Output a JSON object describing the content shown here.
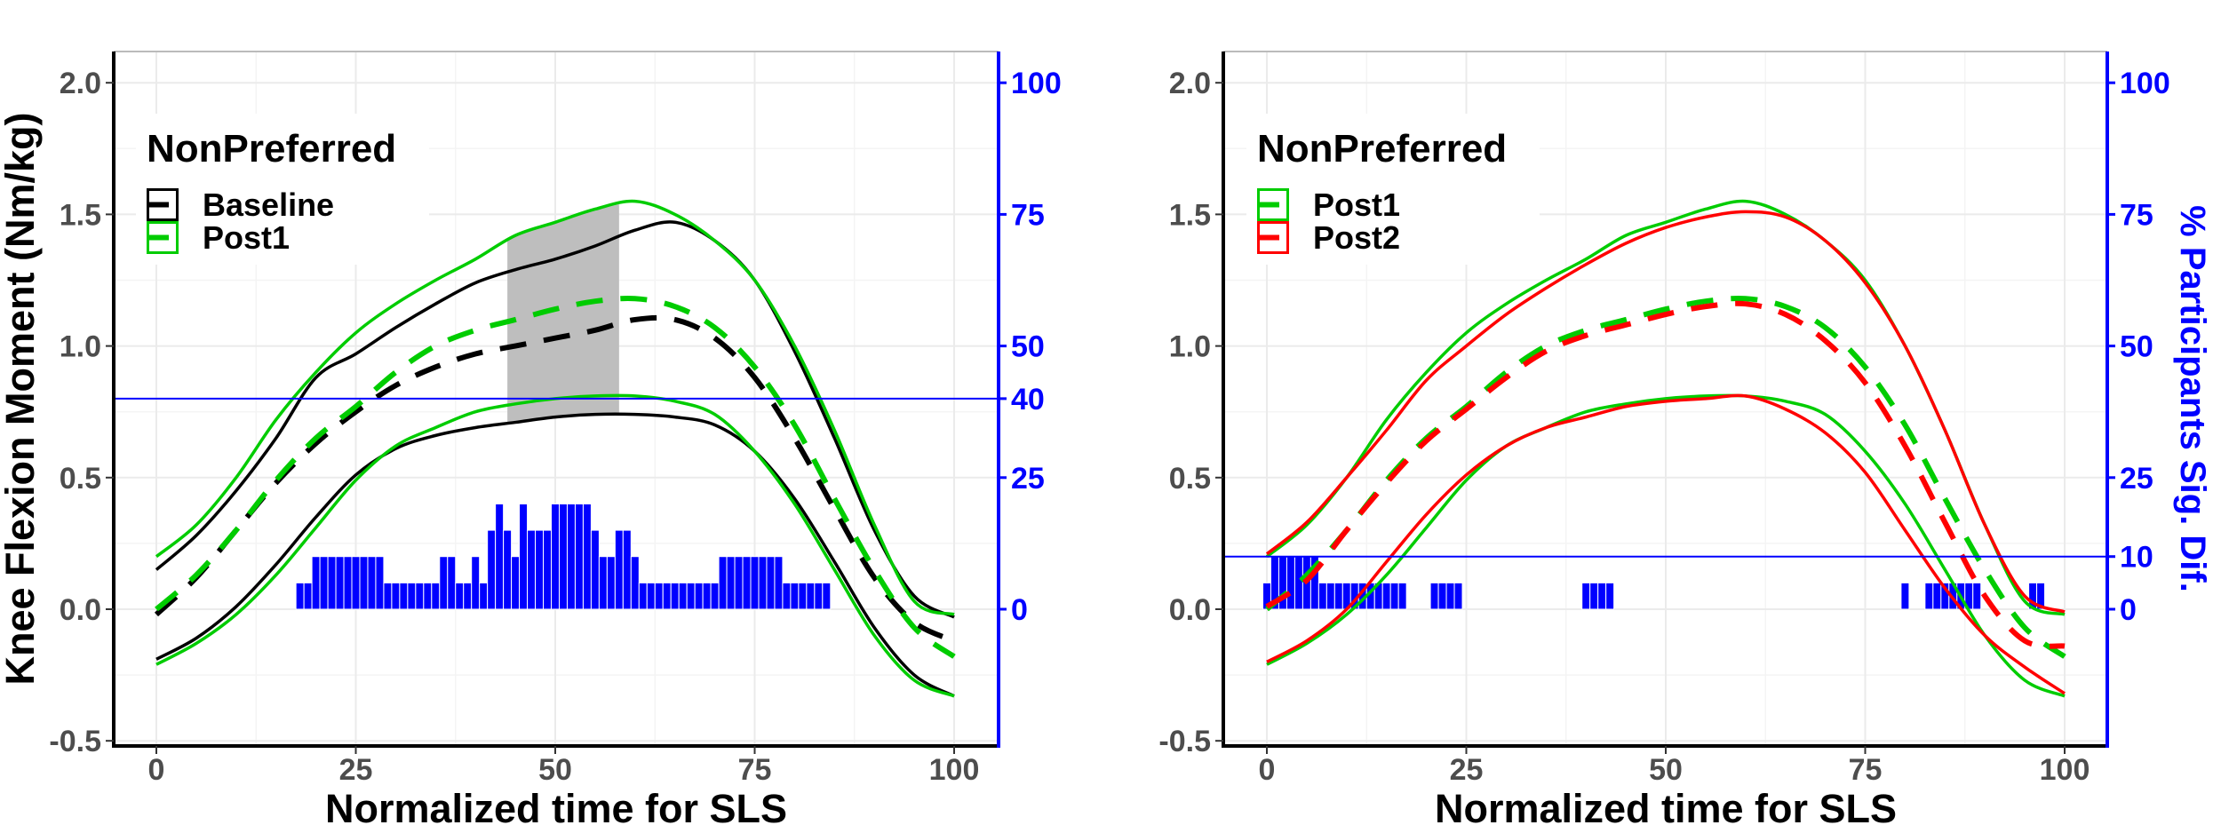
{
  "chart_data": [
    {
      "type": "line",
      "title": "",
      "xlabel": "Normalized time for SLS",
      "ylabel": "Knee Flexion Moment (Nm/kg)",
      "ylabel_right": "",
      "xlim": [
        0,
        100
      ],
      "ylim": [
        -0.5,
        2.0
      ],
      "ylim_right": [
        0,
        100
      ],
      "x_ticks": [
        "0",
        "25",
        "50",
        "75",
        "100"
      ],
      "y_ticks": [
        "-0.5",
        "0.0",
        "0.5",
        "1.0",
        "1.5",
        "2.0"
      ],
      "y_right_ticks": [
        "0",
        "25",
        "40",
        "50",
        "75",
        "100"
      ],
      "grid": true,
      "legend": {
        "title": "NonPreferred",
        "placement": "top-left",
        "entries": [
          "Baseline",
          "Post1"
        ]
      },
      "threshold_line_right_axis": 40,
      "shaded_region_x": [
        44,
        58
      ],
      "x": [
        0,
        5,
        10,
        15,
        20,
        25,
        30,
        35,
        40,
        45,
        50,
        55,
        60,
        65,
        70,
        75,
        80,
        85,
        90,
        95,
        100
      ],
      "series": [
        {
          "name": "Baseline",
          "color": "#000000",
          "mean": [
            -0.02,
            0.12,
            0.3,
            0.48,
            0.63,
            0.75,
            0.85,
            0.92,
            0.97,
            1.0,
            1.03,
            1.06,
            1.1,
            1.1,
            1.03,
            0.88,
            0.65,
            0.38,
            0.12,
            -0.05,
            -0.12
          ],
          "upper": [
            0.15,
            0.28,
            0.45,
            0.65,
            0.88,
            0.97,
            1.07,
            1.16,
            1.24,
            1.29,
            1.33,
            1.38,
            1.44,
            1.47,
            1.4,
            1.25,
            0.98,
            0.65,
            0.3,
            0.05,
            -0.03
          ],
          "lower": [
            -0.19,
            -0.11,
            0.01,
            0.17,
            0.35,
            0.51,
            0.61,
            0.66,
            0.69,
            0.71,
            0.73,
            0.74,
            0.74,
            0.73,
            0.7,
            0.6,
            0.42,
            0.18,
            -0.07,
            -0.25,
            -0.33
          ]
        },
        {
          "name": "Post1",
          "color": "#00cc00",
          "mean": [
            0.0,
            0.13,
            0.3,
            0.49,
            0.65,
            0.77,
            0.9,
            1.0,
            1.06,
            1.1,
            1.14,
            1.17,
            1.18,
            1.15,
            1.07,
            0.92,
            0.7,
            0.42,
            0.15,
            -0.07,
            -0.18
          ],
          "upper": [
            0.2,
            0.32,
            0.5,
            0.72,
            0.9,
            1.05,
            1.16,
            1.25,
            1.33,
            1.42,
            1.47,
            1.52,
            1.55,
            1.5,
            1.4,
            1.25,
            1.0,
            0.68,
            0.32,
            0.03,
            -0.02
          ],
          "lower": [
            -0.21,
            -0.13,
            -0.02,
            0.13,
            0.31,
            0.49,
            0.62,
            0.69,
            0.75,
            0.78,
            0.8,
            0.81,
            0.81,
            0.79,
            0.74,
            0.6,
            0.4,
            0.15,
            -0.1,
            -0.27,
            -0.33
          ]
        }
      ],
      "bars": {
        "color": "#0000ff",
        "x": [
          18,
          19,
          20,
          21,
          22,
          23,
          24,
          25,
          26,
          27,
          28,
          29,
          30,
          31,
          32,
          33,
          34,
          35,
          36,
          37,
          38,
          39,
          40,
          41,
          42,
          43,
          44,
          45,
          46,
          47,
          48,
          49,
          50,
          51,
          52,
          53,
          54,
          55,
          56,
          57,
          58,
          59,
          60,
          61,
          62,
          63,
          64,
          65,
          66,
          67,
          68,
          69,
          70,
          71,
          72,
          73,
          74,
          75,
          76,
          77,
          78,
          79,
          80,
          81,
          82,
          83,
          84
        ],
        "values": [
          5,
          5,
          10,
          10,
          10,
          10,
          10,
          10,
          10,
          10,
          10,
          5,
          5,
          5,
          5,
          5,
          5,
          5,
          10,
          10,
          5,
          5,
          10,
          5,
          15,
          20,
          15,
          10,
          20,
          15,
          15,
          15,
          20,
          20,
          20,
          20,
          20,
          15,
          10,
          10,
          15,
          15,
          10,
          5,
          5,
          5,
          5,
          5,
          5,
          5,
          5,
          5,
          5,
          10,
          10,
          10,
          10,
          10,
          10,
          10,
          10,
          5,
          5,
          5,
          5,
          5,
          5
        ]
      }
    },
    {
      "type": "line",
      "title": "",
      "xlabel": "Normalized time for SLS",
      "ylabel": "",
      "ylabel_right": "% Participants Sig. Dif.",
      "xlim": [
        0,
        100
      ],
      "ylim": [
        -0.5,
        2.0
      ],
      "ylim_right": [
        0,
        100
      ],
      "x_ticks": [
        "0",
        "25",
        "50",
        "75",
        "100"
      ],
      "y_ticks": [
        "-0.5",
        "0.0",
        "0.5",
        "1.0",
        "1.5",
        "2.0"
      ],
      "y_right_ticks": [
        "0",
        "10",
        "25",
        "50",
        "75",
        "100"
      ],
      "grid": true,
      "legend": {
        "title": "NonPreferred",
        "placement": "top-left",
        "entries": [
          "Post1",
          "Post2"
        ]
      },
      "threshold_line_right_axis": 10,
      "x": [
        0,
        5,
        10,
        15,
        20,
        25,
        30,
        35,
        40,
        45,
        50,
        55,
        60,
        65,
        70,
        75,
        80,
        85,
        90,
        95,
        100
      ],
      "series": [
        {
          "name": "Post1",
          "color": "#00cc00",
          "mean": [
            0.0,
            0.13,
            0.3,
            0.49,
            0.65,
            0.77,
            0.9,
            1.0,
            1.06,
            1.1,
            1.14,
            1.17,
            1.18,
            1.15,
            1.07,
            0.92,
            0.7,
            0.42,
            0.15,
            -0.07,
            -0.18
          ],
          "upper": [
            0.2,
            0.32,
            0.5,
            0.72,
            0.9,
            1.05,
            1.16,
            1.25,
            1.33,
            1.42,
            1.47,
            1.52,
            1.55,
            1.5,
            1.4,
            1.25,
            1.0,
            0.68,
            0.32,
            0.03,
            -0.02
          ],
          "lower": [
            -0.21,
            -0.13,
            -0.02,
            0.13,
            0.31,
            0.49,
            0.62,
            0.69,
            0.75,
            0.78,
            0.8,
            0.81,
            0.81,
            0.79,
            0.74,
            0.6,
            0.4,
            0.15,
            -0.1,
            -0.27,
            -0.33
          ]
        },
        {
          "name": "Post2",
          "color": "#ff0000",
          "mean": [
            0.01,
            0.11,
            0.3,
            0.48,
            0.64,
            0.76,
            0.88,
            0.98,
            1.04,
            1.08,
            1.12,
            1.15,
            1.16,
            1.12,
            1.02,
            0.86,
            0.62,
            0.33,
            0.05,
            -0.12,
            -0.14
          ],
          "upper": [
            0.21,
            0.33,
            0.5,
            0.68,
            0.87,
            1.0,
            1.12,
            1.22,
            1.31,
            1.39,
            1.45,
            1.49,
            1.51,
            1.49,
            1.4,
            1.24,
            1.0,
            0.68,
            0.32,
            0.05,
            -0.01
          ],
          "lower": [
            -0.2,
            -0.12,
            0.0,
            0.18,
            0.36,
            0.51,
            0.62,
            0.69,
            0.73,
            0.77,
            0.79,
            0.8,
            0.81,
            0.76,
            0.67,
            0.52,
            0.3,
            0.08,
            -0.1,
            -0.22,
            -0.32
          ]
        }
      ],
      "bars": {
        "color": "#0000ff",
        "x": [
          0,
          1,
          2,
          3,
          4,
          5,
          6,
          7,
          8,
          9,
          10,
          11,
          12,
          13,
          14,
          15,
          16,
          17,
          21,
          22,
          23,
          24,
          40,
          41,
          42,
          43,
          80,
          83,
          84,
          85,
          86,
          87,
          88,
          89,
          96,
          97
        ],
        "values": [
          5,
          10,
          10,
          10,
          10,
          10,
          10,
          5,
          5,
          5,
          5,
          5,
          5,
          5,
          5,
          5,
          5,
          5,
          5,
          5,
          5,
          5,
          5,
          5,
          5,
          5,
          5,
          5,
          5,
          5,
          5,
          5,
          5,
          5,
          5,
          5
        ]
      }
    }
  ]
}
